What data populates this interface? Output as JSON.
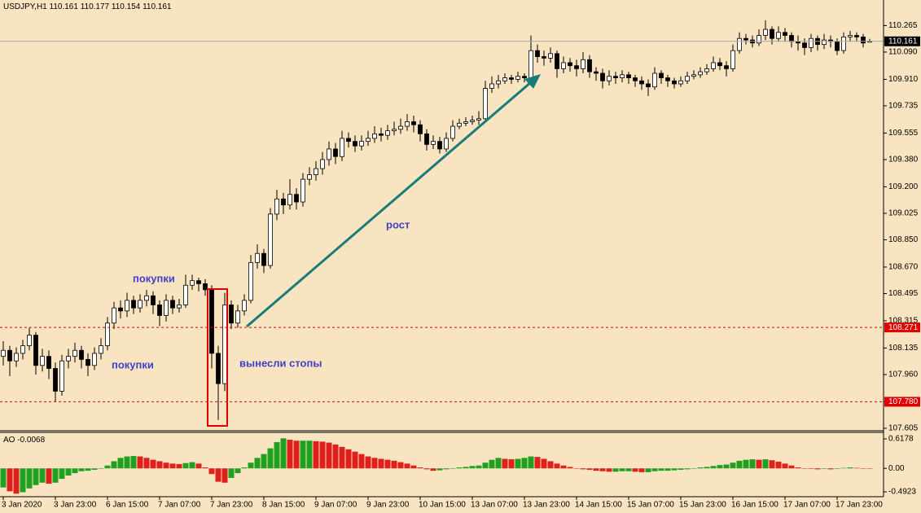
{
  "chart_data": [
    {
      "type": "candlestick",
      "symbol": "USDJPY,H1",
      "categories": [
        "3 Jan 2020",
        null,
        null,
        null,
        null,
        null,
        null,
        null,
        "3 Jan 23:00",
        null,
        null,
        null,
        null,
        null,
        null,
        null,
        "6 Jan 15:00",
        null,
        null,
        null,
        null,
        null,
        null,
        null,
        "7 Jan 07:00",
        null,
        null,
        null,
        null,
        null,
        null,
        null,
        "7 Jan 23:00",
        null,
        null,
        null,
        null,
        null,
        null,
        null,
        "8 Jan 15:00",
        null,
        null,
        null,
        null,
        null,
        null,
        null,
        "9 Jan 07:00",
        null,
        null,
        null,
        null,
        null,
        null,
        null,
        "9 Jan 23:00",
        null,
        null,
        null,
        null,
        null,
        null,
        null,
        "10 Jan 15:00",
        null,
        null,
        null,
        null,
        null,
        null,
        null,
        "13 Jan 07:00",
        null,
        null,
        null,
        null,
        null,
        null,
        null,
        "13 Jan 23:00",
        null,
        null,
        null,
        null,
        null,
        null,
        null,
        "14 Jan 15:00",
        null,
        null,
        null,
        null,
        null,
        null,
        null,
        "15 Jan 07:00",
        null,
        null,
        null,
        null,
        null,
        null,
        null,
        "15 Jan 23:00",
        null,
        null,
        null,
        null,
        null,
        null,
        null,
        "16 Jan 15:00",
        null,
        null,
        null,
        null,
        null,
        null,
        null,
        "17 Jan 07:00",
        null,
        null,
        null,
        null,
        null,
        null,
        null,
        "17 Jan 23:00",
        null,
        null,
        null,
        null,
        null
      ],
      "open": [
        108.08,
        108.12,
        108.05,
        108.1,
        108.15,
        108.22,
        108.02,
        108.08,
        108.0,
        107.85,
        108.05,
        108.08,
        108.12,
        108.06,
        108.02,
        108.1,
        108.15,
        108.3,
        108.4,
        108.38,
        108.45,
        108.4,
        108.45,
        108.48,
        108.42,
        108.35,
        108.45,
        108.4,
        108.42,
        108.55,
        108.58,
        108.56,
        108.52,
        108.1,
        107.9,
        108.42,
        108.3,
        108.38,
        108.45,
        108.7,
        108.76,
        108.68,
        109.02,
        109.12,
        109.08,
        109.15,
        109.1,
        109.25,
        109.28,
        109.32,
        109.38,
        109.45,
        109.4,
        109.52,
        109.5,
        109.47,
        109.5,
        109.52,
        109.55,
        109.54,
        109.57,
        109.58,
        109.6,
        109.63,
        109.61,
        109.55,
        109.48,
        109.5,
        109.45,
        109.52,
        109.6,
        109.62,
        109.63,
        109.64,
        109.65,
        109.85,
        109.88,
        109.9,
        109.92,
        109.91,
        109.93,
        109.92,
        110.1,
        110.06,
        110.05,
        110.08,
        109.98,
        110.02,
        110.0,
        109.98,
        110.04,
        109.96,
        109.95,
        109.9,
        109.93,
        109.92,
        109.94,
        109.92,
        109.9,
        109.88,
        109.86,
        109.95,
        109.92,
        109.9,
        109.88,
        109.9,
        109.93,
        109.94,
        109.96,
        109.98,
        110.02,
        110.0,
        109.98,
        110.1,
        110.18,
        110.17,
        110.15,
        110.2,
        110.24,
        110.18,
        110.22,
        110.2,
        110.16,
        110.15,
        110.12,
        110.18,
        110.14,
        110.17,
        110.16,
        110.1,
        110.19,
        110.2,
        110.19,
        110.161
      ],
      "high": [
        108.18,
        108.15,
        108.14,
        108.19,
        108.27,
        108.24,
        108.13,
        108.12,
        108.04,
        108.09,
        108.13,
        108.17,
        108.15,
        108.1,
        108.14,
        108.2,
        108.34,
        108.44,
        108.45,
        108.5,
        108.48,
        108.49,
        108.52,
        108.51,
        108.45,
        108.49,
        108.48,
        108.46,
        108.62,
        108.62,
        108.6,
        108.59,
        108.55,
        108.15,
        108.5,
        108.45,
        108.42,
        108.49,
        108.75,
        108.82,
        108.79,
        109.06,
        109.18,
        109.16,
        109.25,
        109.19,
        109.29,
        109.33,
        109.37,
        109.43,
        109.5,
        109.49,
        109.57,
        109.56,
        109.54,
        109.54,
        109.57,
        109.6,
        109.59,
        109.61,
        109.63,
        109.65,
        109.68,
        109.67,
        109.64,
        109.58,
        109.54,
        109.53,
        109.56,
        109.64,
        109.65,
        109.66,
        109.67,
        109.7,
        109.9,
        109.93,
        109.94,
        109.95,
        109.94,
        109.96,
        109.95,
        110.2,
        110.14,
        110.1,
        110.12,
        110.1,
        110.06,
        110.05,
        110.04,
        110.09,
        110.07,
        109.99,
        109.98,
        109.97,
        109.96,
        109.97,
        109.96,
        109.94,
        109.93,
        109.91,
        109.99,
        109.97,
        109.94,
        109.92,
        109.93,
        109.96,
        109.97,
        109.99,
        110.01,
        110.06,
        110.05,
        110.03,
        110.14,
        110.22,
        110.21,
        110.2,
        110.24,
        110.3,
        110.26,
        110.26,
        110.25,
        110.22,
        110.2,
        110.18,
        110.21,
        110.2,
        110.21,
        110.2,
        110.18,
        110.22,
        110.23,
        110.22,
        110.21,
        110.177
      ],
      "low": [
        108.02,
        107.95,
        108.01,
        108.06,
        108.12,
        107.96,
        107.98,
        107.93,
        107.78,
        107.82,
        108.0,
        108.04,
        108.0,
        107.95,
        107.99,
        108.06,
        108.12,
        108.26,
        108.33,
        108.34,
        108.36,
        108.37,
        108.41,
        108.36,
        108.28,
        108.31,
        108.36,
        108.37,
        108.4,
        108.52,
        108.51,
        108.48,
        108.0,
        107.66,
        107.85,
        108.26,
        108.27,
        108.35,
        108.43,
        108.66,
        108.63,
        108.66,
        108.98,
        109.02,
        109.05,
        109.05,
        109.07,
        109.21,
        109.24,
        109.28,
        109.34,
        109.35,
        109.37,
        109.46,
        109.43,
        109.44,
        109.47,
        109.49,
        109.5,
        109.51,
        109.54,
        109.55,
        109.57,
        109.56,
        109.5,
        109.44,
        109.45,
        109.42,
        109.43,
        109.5,
        109.58,
        109.6,
        109.61,
        109.61,
        109.63,
        109.82,
        109.85,
        109.88,
        109.88,
        109.89,
        109.89,
        109.9,
        110.02,
        110.0,
        110.02,
        109.92,
        109.95,
        109.96,
        109.93,
        109.95,
        109.92,
        109.9,
        109.85,
        109.87,
        109.88,
        109.89,
        109.88,
        109.86,
        109.84,
        109.8,
        109.84,
        109.88,
        109.86,
        109.85,
        109.86,
        109.88,
        109.91,
        109.92,
        109.94,
        109.96,
        109.97,
        109.93,
        109.96,
        110.08,
        110.14,
        110.12,
        110.13,
        110.17,
        110.14,
        110.16,
        110.16,
        110.12,
        110.1,
        110.07,
        110.09,
        110.1,
        110.11,
        110.12,
        110.07,
        110.08,
        110.16,
        110.16,
        110.12,
        110.154
      ],
      "close": [
        108.12,
        108.05,
        108.1,
        108.15,
        108.22,
        108.02,
        108.08,
        108.0,
        107.85,
        108.05,
        108.08,
        108.12,
        108.06,
        108.02,
        108.1,
        108.15,
        108.3,
        108.4,
        108.38,
        108.45,
        108.4,
        108.45,
        108.48,
        108.42,
        108.35,
        108.45,
        108.4,
        108.42,
        108.55,
        108.58,
        108.56,
        108.52,
        108.1,
        107.9,
        108.42,
        108.3,
        108.38,
        108.45,
        108.7,
        108.76,
        108.68,
        109.02,
        109.12,
        109.08,
        109.15,
        109.1,
        109.25,
        109.28,
        109.32,
        109.38,
        109.45,
        109.4,
        109.52,
        109.5,
        109.47,
        109.5,
        109.52,
        109.55,
        109.54,
        109.57,
        109.58,
        109.6,
        109.63,
        109.61,
        109.55,
        109.48,
        109.5,
        109.45,
        109.52,
        109.6,
        109.62,
        109.63,
        109.64,
        109.65,
        109.85,
        109.88,
        109.9,
        109.92,
        109.91,
        109.93,
        109.92,
        110.1,
        110.06,
        110.05,
        110.08,
        109.98,
        110.02,
        110.0,
        109.98,
        110.04,
        109.96,
        109.95,
        109.9,
        109.93,
        109.92,
        109.94,
        109.92,
        109.9,
        109.88,
        109.86,
        109.95,
        109.92,
        109.9,
        109.88,
        109.9,
        109.93,
        109.94,
        109.96,
        109.98,
        110.02,
        110.0,
        109.98,
        110.1,
        110.18,
        110.17,
        110.15,
        110.2,
        110.24,
        110.18,
        110.22,
        110.2,
        110.16,
        110.15,
        110.12,
        110.18,
        110.14,
        110.17,
        110.16,
        110.1,
        110.19,
        110.2,
        110.19,
        110.15,
        110.161
      ],
      "up_color": "#ffffff",
      "down_color": "#000000",
      "ylim": [
        107.594,
        110.434
      ],
      "yticks": [
        110.265,
        {
          "value": 110.09,
          "label": "110.090"
        },
        {
          "value": 109.91,
          "label": "109.910"
        },
        109.735,
        109.555,
        {
          "value": 109.38,
          "label": "109.380"
        },
        {
          "value": 109.2,
          "label": "109.200"
        },
        109.025,
        {
          "value": 108.85,
          "label": "108.850"
        },
        {
          "value": 108.67,
          "label": "108.670"
        },
        108.495,
        108.315,
        108.135,
        {
          "value": 107.96,
          "label": "107.960"
        },
        {
          "value": 107.78,
          "label": "107.780"
        },
        107.605
      ],
      "price_line": 110.161,
      "levels": {
        "values": [
          108.271,
          107.78
        ],
        "value_labels": [
          "108.271",
          "107.780"
        ],
        "color": "#e00000"
      },
      "annotations": [
        "покупки",
        "покупки",
        "вынесли стопы",
        "рост"
      ]
    },
    {
      "type": "bar",
      "title": "AO",
      "values": [
        -0.4,
        -0.48,
        -0.53,
        -0.5,
        -0.42,
        -0.35,
        -0.3,
        -0.32,
        -0.3,
        -0.22,
        -0.15,
        -0.1,
        -0.06,
        -0.05,
        -0.03,
        0.0,
        0.06,
        0.15,
        0.22,
        0.25,
        0.26,
        0.25,
        0.22,
        0.18,
        0.15,
        0.12,
        0.1,
        0.09,
        0.11,
        0.13,
        0.1,
        0.02,
        -0.12,
        -0.28,
        -0.3,
        -0.2,
        -0.1,
        0.02,
        0.12,
        0.22,
        0.3,
        0.42,
        0.55,
        0.63,
        0.6,
        0.58,
        0.58,
        0.58,
        0.57,
        0.56,
        0.54,
        0.5,
        0.45,
        0.4,
        0.35,
        0.3,
        0.25,
        0.22,
        0.2,
        0.18,
        0.16,
        0.13,
        0.1,
        0.06,
        0.02,
        -0.02,
        -0.05,
        -0.04,
        -0.02,
        0.0,
        0.02,
        0.03,
        0.05,
        0.06,
        0.12,
        0.18,
        0.22,
        0.2,
        0.19,
        0.2,
        0.22,
        0.25,
        0.24,
        0.2,
        0.15,
        0.1,
        0.06,
        0.03,
        0.0,
        -0.02,
        -0.03,
        -0.05,
        -0.06,
        -0.07,
        -0.07,
        -0.06,
        -0.06,
        -0.07,
        -0.08,
        -0.08,
        -0.06,
        -0.05,
        -0.05,
        -0.04,
        -0.03,
        -0.02,
        0.0,
        0.02,
        0.03,
        0.05,
        0.07,
        0.08,
        0.12,
        0.16,
        0.18,
        0.19,
        0.18,
        0.19,
        0.17,
        0.14,
        0.1,
        0.06,
        0.02,
        0.0,
        -0.01,
        -0.02,
        -0.01,
        -0.02,
        -0.01,
        0.01,
        0.02,
        0.01,
        -0.005,
        -0.0068
      ],
      "up_color": "#1fa01f",
      "down_color": "#e0201c",
      "ylim": [
        -0.594,
        0.737
      ],
      "yticks": [
        0.6178,
        {
          "value": 0,
          "label": "0.00"
        },
        -0.4923
      ]
    }
  ]
}
